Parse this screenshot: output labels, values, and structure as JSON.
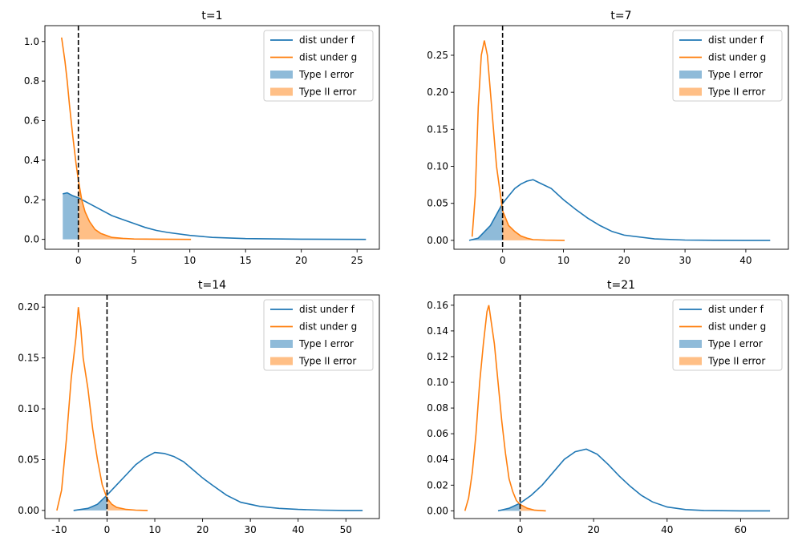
{
  "chart_data": [
    {
      "type": "line",
      "title": "t=1",
      "xlim": [
        -3,
        27
      ],
      "ylim": [
        -0.05,
        1.08
      ],
      "xticks": [
        0,
        5,
        10,
        15,
        20,
        25
      ],
      "yticks": [
        0.0,
        0.2,
        0.4,
        0.6,
        0.8,
        1.0
      ],
      "ytick_labels": [
        "0.0",
        "0.2",
        "0.4",
        "0.6",
        "0.8",
        "1.0"
      ],
      "threshold": 0,
      "legend": [
        "dist under f",
        "dist under g",
        "Type I error",
        "Type II error"
      ],
      "series": [
        {
          "name": "dist under f",
          "color": "#1f77b4",
          "x": [
            -1.4,
            -1,
            -0.5,
            0,
            0.5,
            1,
            2,
            3,
            4,
            5,
            6,
            7,
            8,
            10,
            12,
            15,
            20,
            25.8
          ],
          "y": [
            0.23,
            0.235,
            0.22,
            0.21,
            0.195,
            0.18,
            0.15,
            0.12,
            0.1,
            0.08,
            0.06,
            0.045,
            0.035,
            0.02,
            0.01,
            0.004,
            0.001,
            0.0
          ]
        },
        {
          "name": "dist under g",
          "color": "#ff7f0e",
          "x": [
            -1.5,
            -1.2,
            -1,
            -0.8,
            -0.5,
            -0.2,
            0,
            0.3,
            0.6,
            1,
            1.5,
            2,
            3,
            4,
            5,
            7,
            10.1
          ],
          "y": [
            1.02,
            0.9,
            0.8,
            0.68,
            0.52,
            0.38,
            0.3,
            0.2,
            0.14,
            0.09,
            0.05,
            0.03,
            0.01,
            0.005,
            0.002,
            0.001,
            0.0
          ]
        }
      ]
    },
    {
      "type": "line",
      "title": "t=7",
      "xlim": [
        -8,
        47
      ],
      "ylim": [
        -0.012,
        0.29
      ],
      "xticks": [
        0,
        10,
        20,
        30,
        40
      ],
      "yticks": [
        0.0,
        0.05,
        0.1,
        0.15,
        0.2,
        0.25
      ],
      "ytick_labels": [
        "0.00",
        "0.05",
        "0.10",
        "0.15",
        "0.20",
        "0.25"
      ],
      "threshold": 0,
      "legend": [
        "dist under f",
        "dist under g",
        "Type I error",
        "Type II error"
      ],
      "series": [
        {
          "name": "dist under f",
          "color": "#1f77b4",
          "x": [
            -5.5,
            -4,
            -2,
            0,
            1,
            2,
            3,
            4,
            5,
            6,
            8,
            10,
            12,
            14,
            16,
            18,
            20,
            25,
            30,
            35,
            40,
            44
          ],
          "y": [
            0.0,
            0.003,
            0.02,
            0.05,
            0.06,
            0.07,
            0.076,
            0.08,
            0.082,
            0.078,
            0.07,
            0.055,
            0.042,
            0.03,
            0.02,
            0.012,
            0.007,
            0.002,
            0.0005,
            0.0001,
            0.0,
            0.0
          ]
        },
        {
          "name": "dist under g",
          "color": "#ff7f0e",
          "x": [
            -5,
            -4.5,
            -4,
            -3.5,
            -3,
            -2.5,
            -2,
            -1.5,
            -1,
            0,
            1,
            2,
            3,
            4,
            5,
            7,
            10.2
          ],
          "y": [
            0.005,
            0.06,
            0.18,
            0.25,
            0.27,
            0.25,
            0.2,
            0.15,
            0.1,
            0.04,
            0.02,
            0.012,
            0.006,
            0.003,
            0.001,
            0.0003,
            0.0
          ]
        }
      ]
    },
    {
      "type": "line",
      "title": "t=14",
      "xlim": [
        -13,
        57
      ],
      "ylim": [
        -0.008,
        0.212
      ],
      "xticks": [
        -10,
        0,
        10,
        20,
        30,
        40,
        50
      ],
      "yticks": [
        0.0,
        0.05,
        0.1,
        0.15,
        0.2
      ],
      "ytick_labels": [
        "0.00",
        "0.05",
        "0.10",
        "0.15",
        "0.20"
      ],
      "threshold": 0,
      "legend": [
        "dist under f",
        "dist under g",
        "Type I error",
        "Type II error"
      ],
      "series": [
        {
          "name": "dist under f",
          "color": "#1f77b4",
          "x": [
            -7,
            -4,
            -2,
            0,
            2,
            4,
            6,
            8,
            10,
            12,
            14,
            16,
            18,
            20,
            22,
            25,
            28,
            32,
            36,
            40,
            45,
            50,
            53.5
          ],
          "y": [
            0.0,
            0.002,
            0.006,
            0.015,
            0.025,
            0.035,
            0.045,
            0.052,
            0.057,
            0.056,
            0.053,
            0.048,
            0.04,
            0.032,
            0.025,
            0.015,
            0.008,
            0.004,
            0.002,
            0.001,
            0.0003,
            0.0,
            0.0
          ]
        },
        {
          "name": "dist under g",
          "color": "#ff7f0e",
          "x": [
            -10.5,
            -9.5,
            -8.5,
            -7.5,
            -6.5,
            -6,
            -5.5,
            -5,
            -4,
            -3,
            -2,
            -1,
            0,
            1,
            2,
            4,
            6,
            8.5
          ],
          "y": [
            0.0,
            0.02,
            0.07,
            0.13,
            0.17,
            0.2,
            0.18,
            0.15,
            0.12,
            0.08,
            0.05,
            0.025,
            0.012,
            0.006,
            0.003,
            0.001,
            0.0003,
            0.0
          ]
        }
      ]
    },
    {
      "type": "line",
      "title": "t=21",
      "xlim": [
        -18,
        73
      ],
      "ylim": [
        -0.006,
        0.168
      ],
      "xticks": [
        0,
        20,
        40,
        60
      ],
      "yticks": [
        0.0,
        0.02,
        0.04,
        0.06,
        0.08,
        0.1,
        0.12,
        0.14,
        0.16
      ],
      "ytick_labels": [
        "0.00",
        "0.02",
        "0.04",
        "0.06",
        "0.08",
        "0.10",
        "0.12",
        "0.14",
        "0.16"
      ],
      "threshold": 0,
      "legend": [
        "dist under f",
        "dist under g",
        "Type I error",
        "Type II error"
      ],
      "series": [
        {
          "name": "dist under f",
          "color": "#1f77b4",
          "x": [
            -6,
            -3,
            0,
            3,
            6,
            9,
            12,
            15,
            18,
            21,
            24,
            27,
            30,
            33,
            36,
            40,
            45,
            50,
            55,
            60,
            68
          ],
          "y": [
            0.0,
            0.002,
            0.006,
            0.012,
            0.02,
            0.03,
            0.04,
            0.046,
            0.048,
            0.044,
            0.036,
            0.027,
            0.019,
            0.012,
            0.007,
            0.003,
            0.001,
            0.0003,
            0.0001,
            0.0,
            0.0
          ]
        },
        {
          "name": "dist under g",
          "color": "#ff7f0e",
          "x": [
            -15,
            -14,
            -13,
            -12,
            -11,
            -10,
            -9,
            -8.5,
            -8,
            -7,
            -6,
            -5,
            -4,
            -3,
            -2,
            -1,
            0,
            2,
            4,
            7
          ],
          "y": [
            0.0,
            0.01,
            0.03,
            0.06,
            0.1,
            0.13,
            0.155,
            0.16,
            0.15,
            0.13,
            0.1,
            0.07,
            0.045,
            0.025,
            0.015,
            0.008,
            0.005,
            0.002,
            0.0005,
            0.0
          ]
        }
      ]
    }
  ]
}
